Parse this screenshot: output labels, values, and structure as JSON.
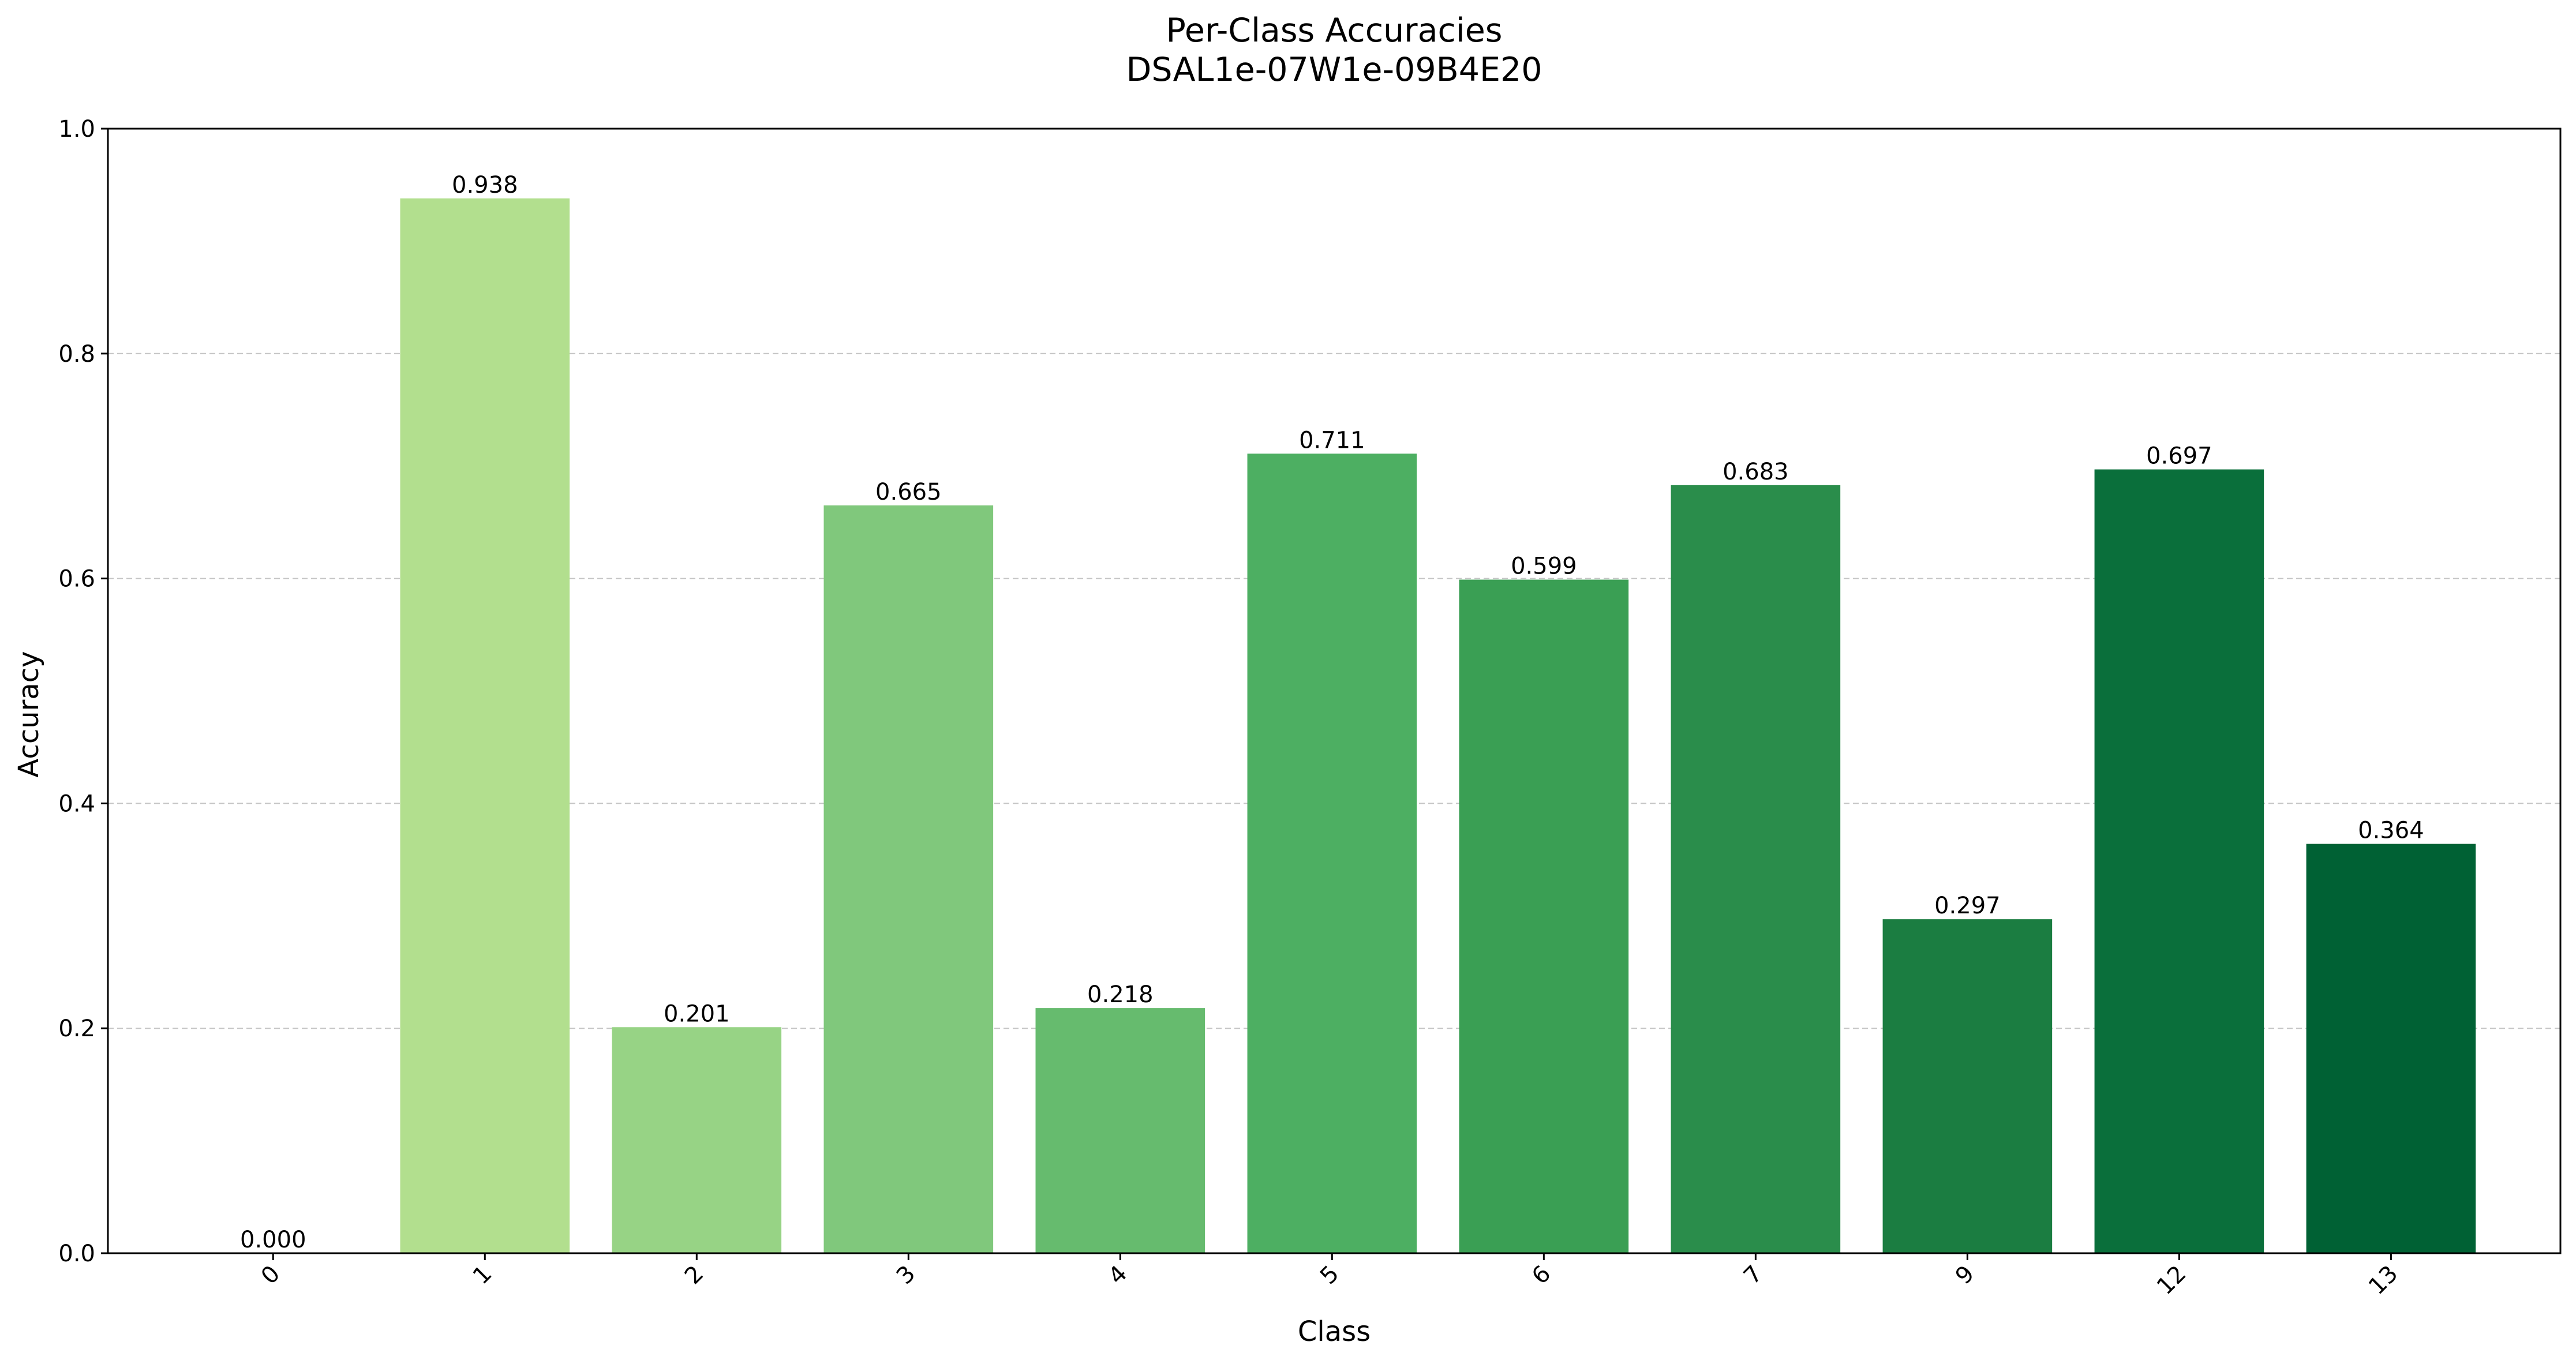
{
  "chart_data": {
    "type": "bar",
    "title": "Per-Class Accuracies",
    "subtitle": "DSAL1e-07W1e-09B4E20",
    "xlabel": "Class",
    "ylabel": "Accuracy",
    "categories": [
      "0",
      "1",
      "2",
      "3",
      "4",
      "5",
      "6",
      "7",
      "9",
      "12",
      "13"
    ],
    "values": [
      0.0,
      0.938,
      0.201,
      0.665,
      0.218,
      0.711,
      0.599,
      0.683,
      0.297,
      0.697,
      0.364
    ],
    "value_labels": [
      "0.000",
      "0.938",
      "0.201",
      "0.665",
      "0.218",
      "0.711",
      "0.599",
      "0.683",
      "0.297",
      "0.697",
      "0.364"
    ],
    "colors": [
      "#ccebaa",
      "#b2df8e",
      "#97d385",
      "#80c87c",
      "#66bb6e",
      "#4daf62",
      "#3a9f54",
      "#2a8d4b",
      "#1b7d41",
      "#0a6f3b",
      "#006134"
    ],
    "ylim": [
      0,
      1.0
    ],
    "yticks": [
      0.0,
      0.2,
      0.4,
      0.6,
      0.8,
      1.0
    ],
    "ytick_labels": [
      "0.0",
      "0.2",
      "0.4",
      "0.6",
      "0.8",
      "1.0"
    ],
    "grid": "y-dashed",
    "legend": "none"
  }
}
